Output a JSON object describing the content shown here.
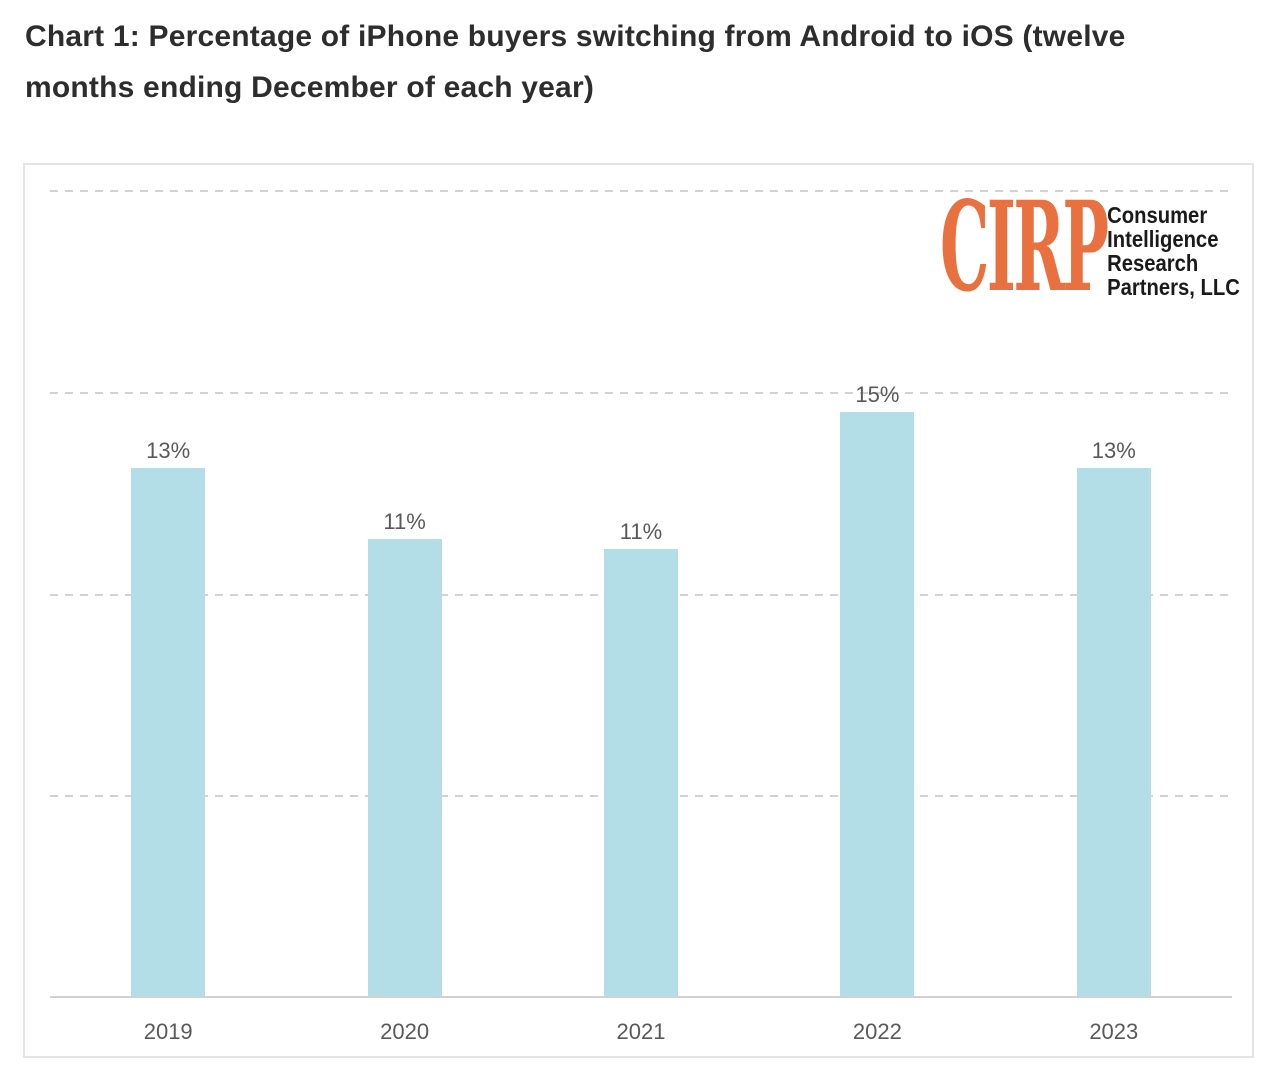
{
  "title": {
    "full": "Chart 1: Percentage of iPhone buyers switching from Android to iOS (twelve months ending December of each year)",
    "line1": "Chart 1: Percentage of iPhone buyers switching from Android to iOS (twelve",
    "line2": "months ending December of each year)"
  },
  "logo": {
    "mark": "CIRP",
    "lines": [
      "Consumer",
      "Intelligence",
      "Research",
      "Partners, LLC"
    ],
    "mark_color": "#E8713F",
    "text_color": "#1a1a1a"
  },
  "chart_data": {
    "type": "bar",
    "title": "Chart 1: Percentage of iPhone buyers switching from Android to iOS (twelve months ending December of each year)",
    "categories": [
      "2019",
      "2020",
      "2021",
      "2022",
      "2023"
    ],
    "values": [
      13,
      11,
      11,
      15,
      13
    ],
    "labels": [
      "13%",
      "11%",
      "11%",
      "15%",
      "13%"
    ],
    "values_precise": [
      13.1,
      11.35,
      11.1,
      14.5,
      13.1
    ],
    "unit": "%",
    "xlabel": "",
    "ylabel": "",
    "ylim": [
      0,
      20
    ],
    "y_gridlines": [
      5,
      10,
      15,
      20
    ],
    "gridline_style": "dashed",
    "y_axis_labels_visible": false,
    "legend": "none",
    "bar_color": "#B4DEE7",
    "label_color": "#595959",
    "axis_color": "#d0d0d0",
    "gridline_color": "#d2d2d2"
  }
}
